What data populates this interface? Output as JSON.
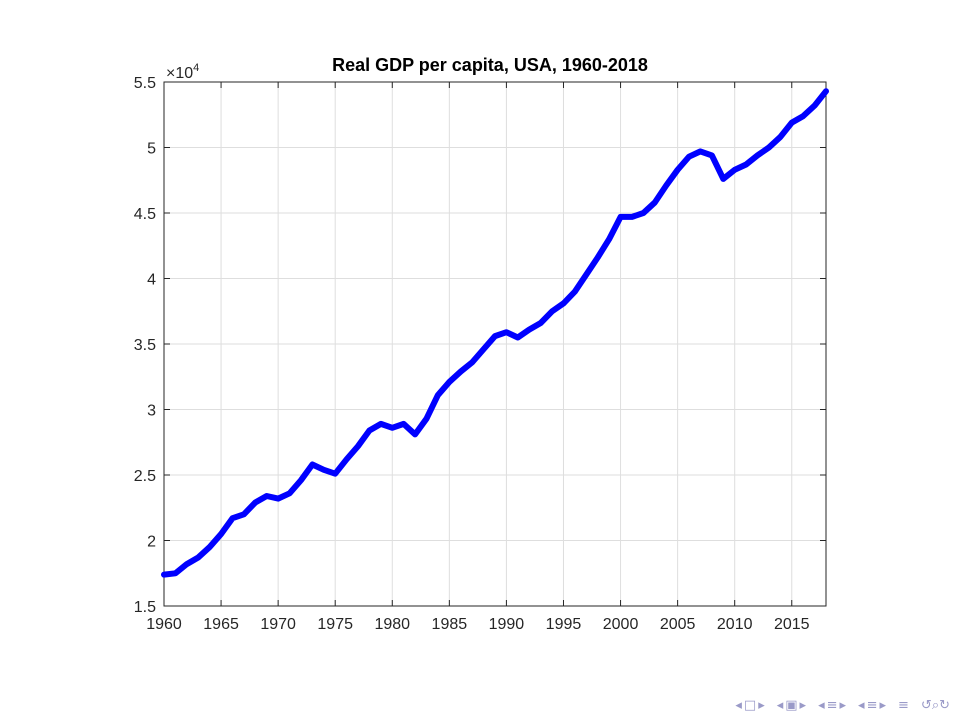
{
  "chart_data": {
    "type": "line",
    "title": "Real GDP per capita, USA, 1960-2018",
    "xlabel": "",
    "ylabel": "",
    "y_exponent_label": "×10",
    "y_exponent_power": "4",
    "xlim": [
      1960,
      2018
    ],
    "ylim": [
      15000,
      55000
    ],
    "grid": true,
    "line_color": "#0000ff",
    "x_ticks": [
      1960,
      1965,
      1970,
      1975,
      1980,
      1985,
      1990,
      1995,
      2000,
      2005,
      2010,
      2015
    ],
    "x_tick_labels": [
      "1960",
      "1965",
      "1970",
      "1975",
      "1980",
      "1985",
      "1990",
      "1995",
      "2000",
      "2005",
      "2010",
      "2015"
    ],
    "y_ticks": [
      15000,
      20000,
      25000,
      30000,
      35000,
      40000,
      45000,
      50000,
      55000
    ],
    "y_tick_labels": [
      "1.5",
      "2",
      "2.5",
      "3",
      "3.5",
      "4",
      "4.5",
      "5",
      "5.5"
    ],
    "series": [
      {
        "x": [
          1960,
          1961,
          1962,
          1963,
          1964,
          1965,
          1966,
          1967,
          1968,
          1969,
          1970,
          1971,
          1972,
          1973,
          1974,
          1975,
          1976,
          1977,
          1978,
          1979,
          1980,
          1981,
          1982,
          1983,
          1984,
          1985,
          1986,
          1987,
          1988,
          1989,
          1990,
          1991,
          1992,
          1993,
          1994,
          1995,
          1996,
          1997,
          1998,
          1999,
          2000,
          2001,
          2002,
          2003,
          2004,
          2005,
          2006,
          2007,
          2008,
          2009,
          2010,
          2011,
          2012,
          2013,
          2014,
          2015,
          2016,
          2017,
          2018
        ],
        "values": [
          17400,
          17500,
          18200,
          18700,
          19500,
          20500,
          21700,
          22000,
          22900,
          23400,
          23200,
          23600,
          24600,
          25800,
          25400,
          25100,
          26200,
          27200,
          28400,
          28900,
          28600,
          28900,
          28100,
          29300,
          31100,
          32100,
          32900,
          33600,
          34600,
          35600,
          35900,
          35500,
          36100,
          36600,
          37500,
          38100,
          39000,
          40300,
          41600,
          43000,
          44700,
          44700,
          45000,
          45800,
          47100,
          48300,
          49300,
          49700,
          49400,
          47600,
          48300,
          48700,
          49400,
          50000,
          50800,
          51900,
          52400,
          53200,
          54300
        ]
      }
    ]
  },
  "nav_icons": [
    "nav-prev-icon",
    "nav-frame-icon",
    "nav-next-icon",
    "nav-prev-icon",
    "nav-subsection-icon",
    "nav-next-icon",
    "nav-prev-icon",
    "nav-section-icon",
    "nav-next-icon",
    "nav-prev-icon",
    "nav-section-icon",
    "nav-next-icon",
    "nav-align-icon",
    "nav-search-icon"
  ]
}
